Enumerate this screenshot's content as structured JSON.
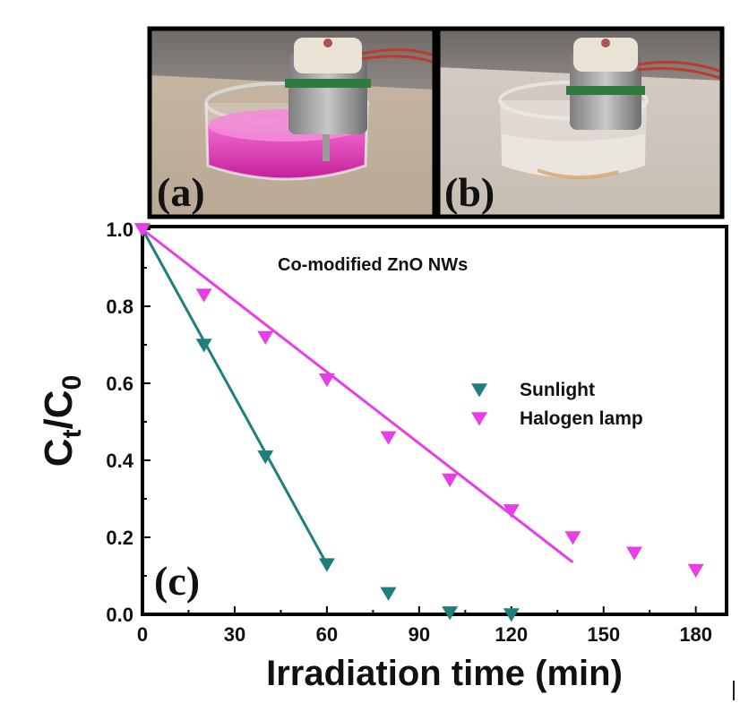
{
  "panels": {
    "a": {
      "label": "(a)",
      "scene": "beaker-pink-dye-with-motor"
    },
    "b": {
      "label": "(b)",
      "scene": "beaker-clear-water-with-motor"
    },
    "c": {
      "label": "(c)"
    }
  },
  "chart_data": {
    "type": "scatter",
    "title": "Co-modified ZnO NWs",
    "xlabel": "Irradiation time (min)",
    "ylabel_main": "C",
    "ylabel_sub1": "t",
    "ylabel_slash": "/C",
    "ylabel_sub2": "0",
    "xlim": [
      0,
      190
    ],
    "ylim": [
      0,
      1.0
    ],
    "xticks": [
      0,
      30,
      60,
      90,
      120,
      150,
      180
    ],
    "xtick_labels": [
      "0",
      "30",
      "60",
      "90",
      "120",
      "150",
      "180"
    ],
    "yticks": [
      0,
      0.2,
      0.4,
      0.6,
      0.8,
      1.0
    ],
    "ytick_labels": [
      "0.0",
      "0.2",
      "0.4",
      "0.6",
      "0.8",
      "1.0"
    ],
    "legend_position": "right-middle",
    "grid": false,
    "series": [
      {
        "name": "Sunlight",
        "color": "#1f7f7a",
        "marker": "down-triangle",
        "x": [
          0,
          20,
          40,
          60,
          80,
          100,
          120
        ],
        "y": [
          1.0,
          0.7,
          0.41,
          0.13,
          0.055,
          0.005,
          0.0
        ],
        "fit_line": {
          "x": [
            0,
            60
          ],
          "y": [
            1.0,
            0.13
          ]
        }
      },
      {
        "name": "Halogen lamp",
        "color": "#e83ee8",
        "marker": "down-triangle",
        "x": [
          0,
          20,
          40,
          60,
          80,
          100,
          120,
          140,
          160,
          180
        ],
        "y": [
          1.0,
          0.83,
          0.72,
          0.61,
          0.46,
          0.35,
          0.27,
          0.2,
          0.16,
          0.115
        ],
        "fit_line": {
          "x": [
            0,
            140
          ],
          "y": [
            1.0,
            0.135
          ]
        }
      }
    ]
  }
}
